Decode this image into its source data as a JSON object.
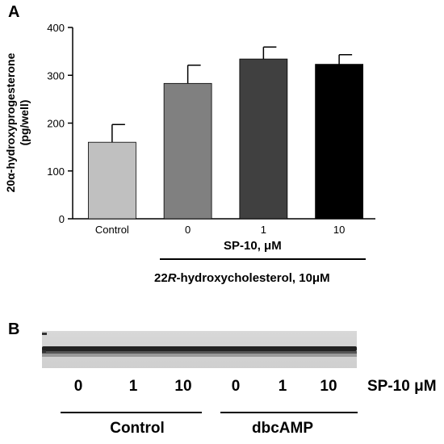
{
  "panel_a_label": "A",
  "panel_b_label": "B",
  "chart_data": {
    "type": "bar",
    "categories": [
      "Control",
      "0",
      "1",
      "10"
    ],
    "values": [
      160,
      283,
      334,
      323
    ],
    "errors": [
      37,
      38,
      25,
      20
    ],
    "bar_colors": [
      "#c0c0c0",
      "#808080",
      "#404040",
      "#000000"
    ],
    "ylabel_line1": "20α-hydroxyprogesterone",
    "ylabel_line2": "(pg/well)",
    "ylim": [
      0,
      400
    ],
    "yticks": [
      0,
      100,
      200,
      300,
      400
    ],
    "grid": false
  },
  "sp10_label": "SP-10, μM",
  "treatment_label": "22R-hydroxycholesterol, 10μM",
  "treatment_label_prefix": "22",
  "treatment_label_italic": "R",
  "treatment_label_suffix": "-hydroxycholesterol, 10μM",
  "blot": {
    "lane_labels": [
      "0",
      "1",
      "10",
      "0",
      "1",
      "10"
    ],
    "unit_label": "SP-10 μM",
    "groups": [
      "Control",
      "dbcAMP"
    ]
  }
}
